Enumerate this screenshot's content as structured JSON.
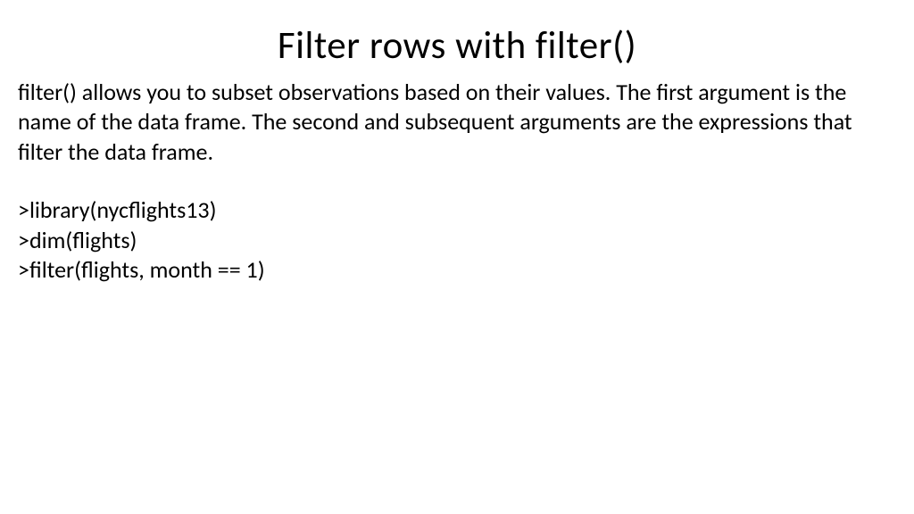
{
  "slide": {
    "title": "Filter rows with filter()",
    "body": "filter() allows you to subset observations based on their values. The first argument is the name of the data frame. The second and subsequent arguments are the expressions that filter the data frame.",
    "code": {
      "line1": ">library(nycflights13)",
      "line2": ">dim(flights)",
      "line3": ">filter(flights, month == 1)"
    },
    "colors": {
      "background": "#ffffff",
      "text": "#000000"
    },
    "typography": {
      "title_fontsize": 43,
      "body_fontsize": 26,
      "font_family": "Calibri"
    }
  }
}
